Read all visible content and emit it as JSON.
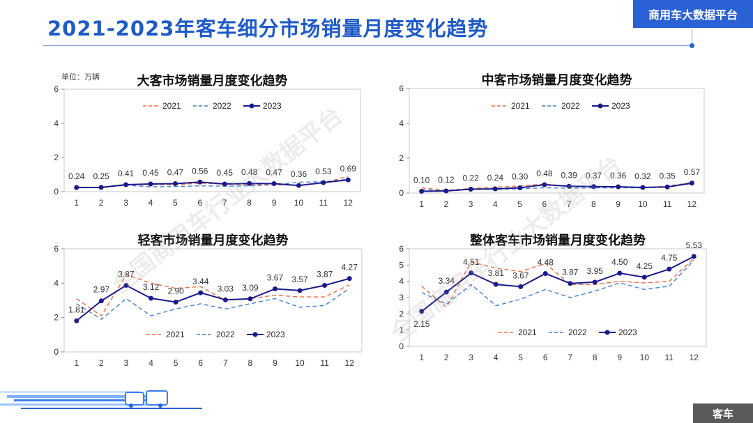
{
  "header": {
    "title": "2021-2023年客车细分市场销量月度变化趋势",
    "brand": "商用车大数据平台"
  },
  "watermark_text": "全国商用车行业大数据平台",
  "footer": {
    "label": "客车"
  },
  "colors": {
    "y2021": "#ef6a3c",
    "y2022": "#3f7fd6",
    "y2023": "#1a1a8c",
    "accent": "#2a62d6"
  },
  "chart_data": [
    {
      "type": "line",
      "title": "大客市场销量月度变化趋势",
      "unit_label": "单位：万辆",
      "x": [
        1,
        2,
        3,
        4,
        5,
        6,
        7,
        8,
        9,
        10,
        11,
        12
      ],
      "ylim": [
        0,
        6
      ],
      "yticks": [
        0,
        2,
        4,
        6
      ],
      "legend_position": "top",
      "series": [
        {
          "name": "2021",
          "style": "dashed",
          "values": [
            0.24,
            0.22,
            0.38,
            0.42,
            0.4,
            0.5,
            0.44,
            0.42,
            0.4,
            0.38,
            0.5,
            0.9
          ]
        },
        {
          "name": "2022",
          "style": "dashed",
          "values": [
            0.26,
            0.24,
            0.38,
            0.28,
            0.3,
            0.34,
            0.32,
            0.34,
            0.4,
            0.55,
            0.58,
            0.72
          ]
        },
        {
          "name": "2023",
          "style": "solid",
          "values": [
            0.24,
            0.25,
            0.41,
            0.45,
            0.47,
            0.56,
            0.45,
            0.48,
            0.47,
            0.36,
            0.53,
            0.69
          ]
        }
      ],
      "data_labels": [
        "0.24",
        "0.25",
        "0.41",
        "0.45",
        "0.47",
        "0.56",
        "0.45",
        "0.48",
        "0.47",
        "0.36",
        "0.53",
        "0.69"
      ]
    },
    {
      "type": "line",
      "title": "中客市场销量月度变化趋势",
      "x": [
        1,
        2,
        3,
        4,
        5,
        6,
        7,
        8,
        9,
        10,
        11,
        12
      ],
      "ylim": [
        0,
        6
      ],
      "yticks": [
        0,
        2,
        4,
        6
      ],
      "legend_position": "top",
      "series": [
        {
          "name": "2021",
          "style": "dashed",
          "values": [
            0.3,
            0.16,
            0.26,
            0.34,
            0.4,
            0.52,
            0.38,
            0.36,
            0.34,
            0.3,
            0.4,
            0.6
          ]
        },
        {
          "name": "2022",
          "style": "dashed",
          "values": [
            0.2,
            0.12,
            0.22,
            0.2,
            0.24,
            0.3,
            0.28,
            0.3,
            0.3,
            0.3,
            0.34,
            0.55
          ]
        },
        {
          "name": "2023",
          "style": "solid",
          "values": [
            0.1,
            0.12,
            0.22,
            0.24,
            0.3,
            0.48,
            0.39,
            0.37,
            0.36,
            0.32,
            0.35,
            0.57
          ]
        }
      ],
      "data_labels": [
        "0.10",
        "0.12",
        "0.22",
        "0.24",
        "0.30",
        "0.48",
        "0.39",
        "0.37",
        "0.36",
        "0.32",
        "0.35",
        "0.57"
      ]
    },
    {
      "type": "line",
      "title": "轻客市场销量月度变化趋势",
      "x": [
        1,
        2,
        3,
        4,
        5,
        6,
        7,
        8,
        9,
        10,
        11,
        12
      ],
      "ylim": [
        0,
        6
      ],
      "yticks": [
        0,
        2,
        4,
        6
      ],
      "legend_position": "bottom",
      "series": [
        {
          "name": "2021",
          "style": "dashed",
          "values": [
            3.1,
            2.1,
            4.5,
            4.0,
            3.7,
            3.8,
            3.0,
            3.1,
            3.3,
            3.2,
            3.2,
            3.9
          ]
        },
        {
          "name": "2022",
          "style": "dashed",
          "values": [
            2.8,
            1.9,
            3.1,
            2.1,
            2.5,
            2.8,
            2.5,
            2.8,
            3.1,
            2.6,
            2.7,
            3.7
          ]
        },
        {
          "name": "2023",
          "style": "solid",
          "values": [
            1.81,
            2.97,
            3.87,
            3.12,
            2.9,
            3.44,
            3.03,
            3.09,
            3.67,
            3.57,
            3.87,
            4.27
          ]
        }
      ],
      "data_labels": [
        "1.81",
        "2.97",
        "3.87",
        "3.12",
        "2.90",
        "3.44",
        "3.03",
        "3.09",
        "3.67",
        "3.57",
        "3.87",
        "4.27"
      ]
    },
    {
      "type": "line",
      "title": "整体客车市场销量月度变化趋势",
      "x": [
        1,
        2,
        3,
        4,
        5,
        6,
        7,
        8,
        9,
        10,
        11,
        12
      ],
      "ylim": [
        0,
        6
      ],
      "yticks": [
        0,
        1,
        2,
        3,
        4,
        5,
        6
      ],
      "legend_position": "bottom",
      "series": [
        {
          "name": "2021",
          "style": "dashed",
          "values": [
            3.7,
            2.4,
            5.2,
            4.8,
            4.6,
            5.1,
            3.8,
            3.8,
            4.0,
            3.9,
            4.0,
            5.4
          ]
        },
        {
          "name": "2022",
          "style": "dashed",
          "values": [
            3.3,
            2.6,
            3.8,
            2.5,
            2.9,
            3.5,
            3.0,
            3.4,
            3.9,
            3.5,
            3.7,
            5.3
          ]
        },
        {
          "name": "2023",
          "style": "solid",
          "values": [
            2.15,
            3.34,
            4.51,
            3.81,
            3.67,
            4.48,
            3.87,
            3.95,
            4.5,
            4.25,
            4.75,
            5.53
          ]
        }
      ],
      "data_labels": [
        "2.15",
        "3.34",
        "4.51",
        "3.81",
        "3.67",
        "4.48",
        "3.87",
        "3.95",
        "4.50",
        "4.25",
        "4.75",
        "5.53"
      ]
    }
  ]
}
